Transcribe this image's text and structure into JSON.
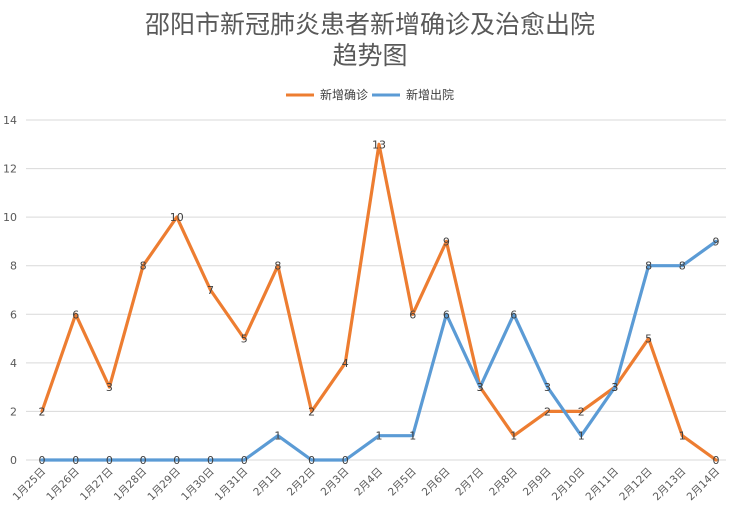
{
  "chart_data": {
    "type": "line",
    "title_lines": [
      "邵阳市新冠肺炎患者新增确诊及治愈出院",
      "趋势图"
    ],
    "categories": [
      "1月25日",
      "1月26日",
      "1月27日",
      "1月28日",
      "1月29日",
      "1月30日",
      "1月31日",
      "2月1日",
      "2月2日",
      "2月3日",
      "2月4日",
      "2月5日",
      "2月6日",
      "2月7日",
      "2月8日",
      "2月9日",
      "2月10日",
      "2月11日",
      "2月12日",
      "2月13日",
      "2月14日"
    ],
    "series": [
      {
        "name": "新增确诊",
        "color": "#ED7D31",
        "values": [
          2,
          6,
          3,
          8,
          10,
          7,
          5,
          8,
          2,
          4,
          13,
          6,
          9,
          3,
          1,
          2,
          2,
          3,
          5,
          1,
          0
        ]
      },
      {
        "name": "新增出院",
        "color": "#5B9BD5",
        "values": [
          0,
          0,
          0,
          0,
          0,
          0,
          0,
          1,
          0,
          0,
          1,
          1,
          6,
          3,
          6,
          3,
          1,
          3,
          8,
          8,
          9
        ]
      }
    ],
    "y_ticks": [
      "0",
      "2",
      "4",
      "6",
      "8",
      "10",
      "12",
      "14"
    ],
    "ylim": [
      0,
      14
    ],
    "legend_position": "top",
    "grid": true,
    "gridline_color": "#D9D9D9"
  }
}
